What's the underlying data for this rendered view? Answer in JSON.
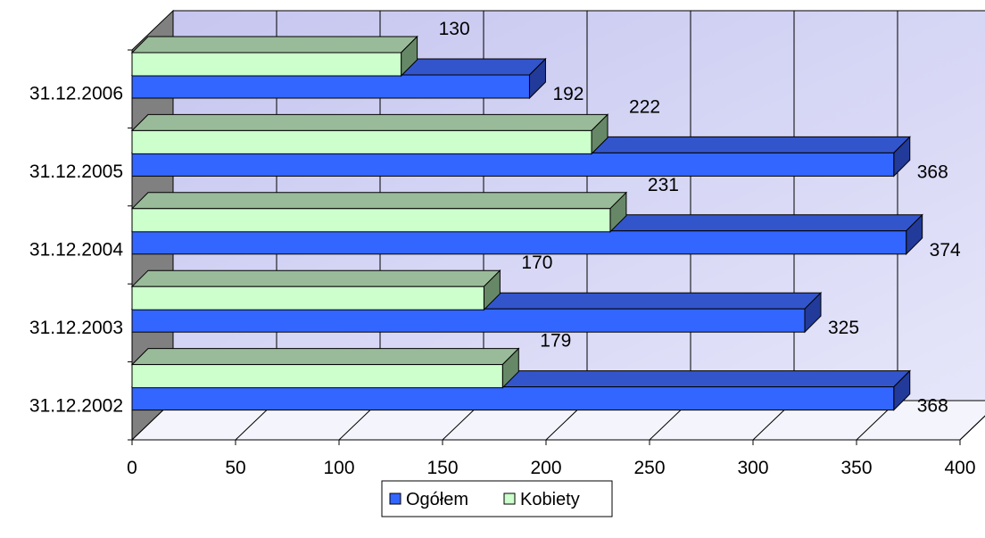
{
  "chart_data": {
    "type": "bar",
    "orientation": "horizontal",
    "style": "3d",
    "categories": [
      "31.12.2002",
      "31.12.2003",
      "31.12.2004",
      "31.12.2005",
      "31.12.2006"
    ],
    "series": [
      {
        "name": "Ogółem",
        "values": [
          368,
          325,
          374,
          368,
          192
        ],
        "color": "#3366FF"
      },
      {
        "name": "Kobiety",
        "values": [
          179,
          170,
          231,
          222,
          130
        ],
        "color": "#CCFFCC"
      }
    ],
    "x_ticks": [
      "0",
      "50",
      "100",
      "150",
      "200",
      "250",
      "300",
      "350",
      "400"
    ],
    "xlim": [
      0,
      400
    ],
    "grid": true,
    "legend_position": "bottom"
  },
  "colors": {
    "wall_top": "#C6C6F0",
    "wall_bottom": "#E6E6FA",
    "side_wall": "#808080",
    "floor": "#F4F4FC",
    "blue_top": "#3355CC",
    "blue_side": "#223A99",
    "green_top": "#99BB99",
    "green_side": "#668866"
  }
}
